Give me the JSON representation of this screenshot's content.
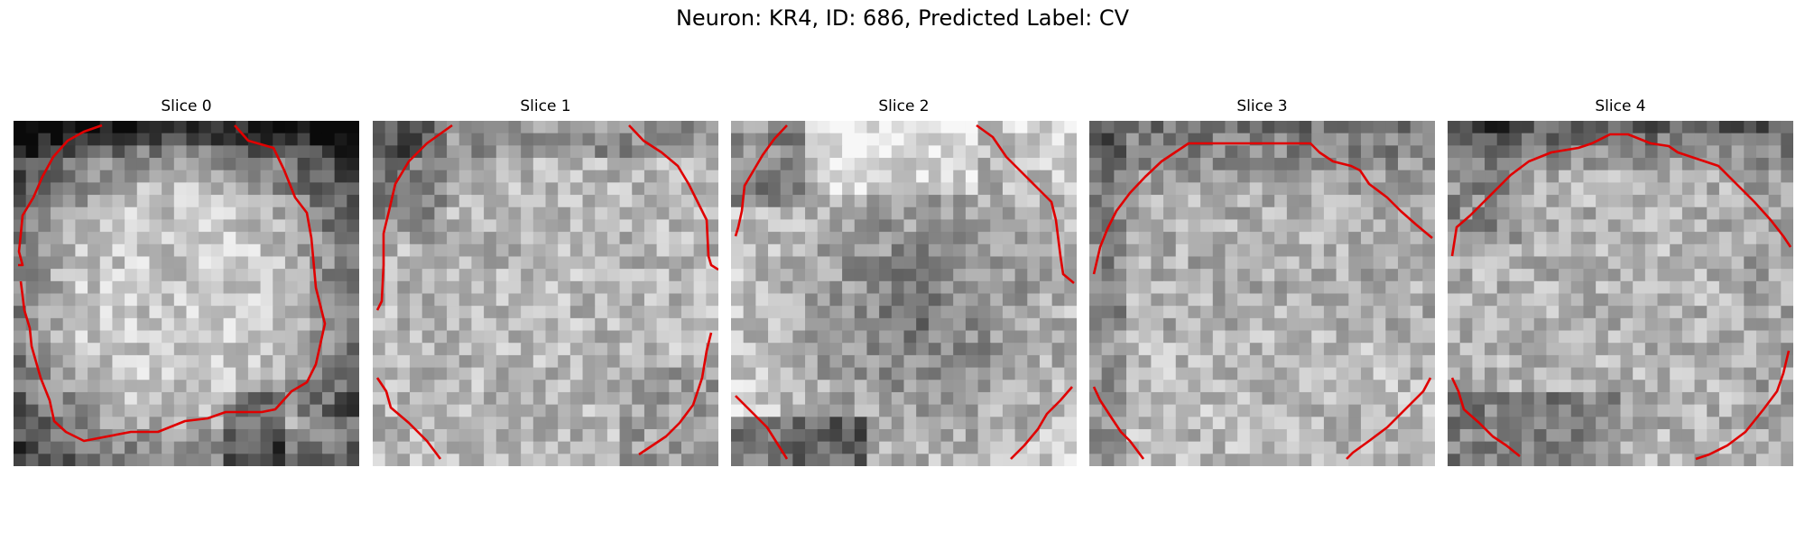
{
  "figure": {
    "title": "Neuron: KR4, ID: 686, Predicted Label: CV",
    "contour_color": "#e00000",
    "colormap": "gray"
  },
  "panels": [
    {
      "title": "Slice 0",
      "center_brightness": "bright",
      "dark_regions": [
        "top",
        "top-left",
        "bottom-right"
      ]
    },
    {
      "title": "Slice 1",
      "center_brightness": "bright",
      "dark_regions": [
        "top-left",
        "top"
      ]
    },
    {
      "title": "Slice 2",
      "center_brightness": "dark",
      "dark_regions": [
        "center",
        "bottom",
        "top-left"
      ]
    },
    {
      "title": "Slice 3",
      "center_brightness": "mixed",
      "dark_regions": [
        "top",
        "left"
      ]
    },
    {
      "title": "Slice 4",
      "center_brightness": "bright",
      "dark_regions": [
        "top",
        "bottom-left"
      ]
    }
  ]
}
